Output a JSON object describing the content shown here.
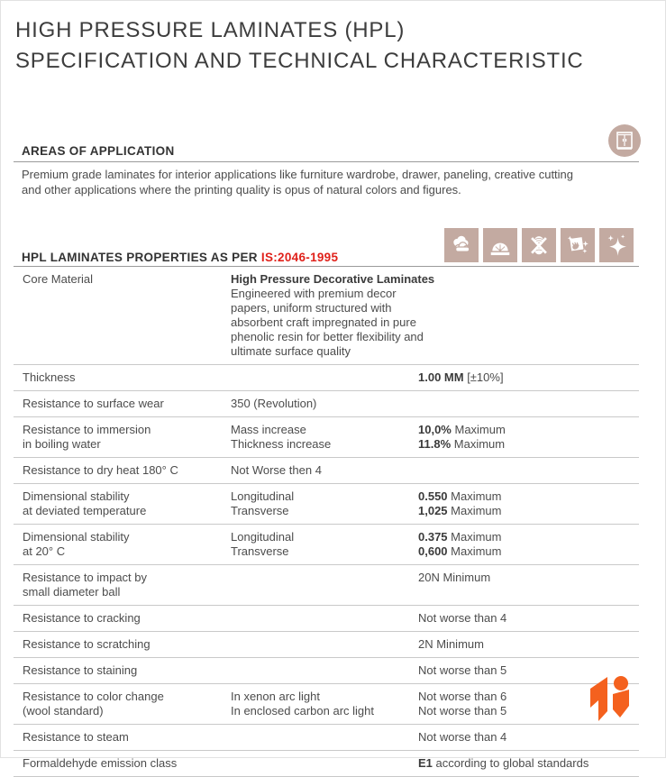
{
  "page": {
    "title_line1": "HIGH PRESSURE LAMINATES (HPL)",
    "title_line2": "SPECIFICATION AND TECHNICAL CHARACTERISTIC"
  },
  "areas": {
    "heading": "AREAS OF APPLICATION",
    "body": "Premium grade laminates for interior applications like furniture wardrobe, drawer, paneling, creative cutting and other applications where the printing quality is opus of natural colors and figures.",
    "icon": "wardrobe-icon"
  },
  "properties": {
    "heading_prefix": "HPL LAMINATES PROPERTIES AS PER ",
    "heading_standard": "IS:2046-1995",
    "icons": [
      "steam-clouds-icon",
      "abrasion-disc-icon",
      "no-scratch-icon",
      "easy-clean-icon",
      "shine-sparkle-icon"
    ]
  },
  "colors": {
    "accent_red": "#e0211a",
    "icon_taupe": "#c3aaa1",
    "logo_orange": "#f4611e",
    "text_dark": "#3d3d3d",
    "rule_gray": "#7f7f7f",
    "row_line": "#c9c9c9"
  },
  "table": {
    "rows": [
      {
        "property": [
          "Core Material"
        ],
        "wide_mid": true,
        "mid": [
          {
            "b": "High Pressure Decorative Laminates"
          },
          {
            "t": "Engineered with premium decor papers, uniform structured with absorbent craft impregnated in pure phenolic resin for better flexibility and ultimate surface quality"
          }
        ],
        "value": []
      },
      {
        "property": [
          "Thickness"
        ],
        "mid": [],
        "value": [
          {
            "b": "1.00 MM",
            "t": "  [±10%]"
          }
        ]
      },
      {
        "property": [
          "Resistance to surface wear"
        ],
        "mid": [
          "350 (Revolution)"
        ],
        "value": []
      },
      {
        "property": [
          "Resistance to immersion",
          "in boiling water"
        ],
        "mid": [
          "Mass increase",
          "Thickness increase"
        ],
        "value": [
          {
            "b": "10,0%",
            "t": " Maximum"
          },
          {
            "b": "11.8%",
            "t": " Maximum"
          }
        ]
      },
      {
        "property": [
          "Resistance to dry heat 180° C"
        ],
        "mid": [
          "Not Worse then 4"
        ],
        "value": []
      },
      {
        "property": [
          "Dimensional stability",
          "at deviated temperature"
        ],
        "mid": [
          "Longitudinal",
          "Transverse"
        ],
        "value": [
          {
            "b": "0.550",
            "t": " Maximum"
          },
          {
            "b": "1,025",
            "t": " Maximum"
          }
        ]
      },
      {
        "property": [
          "Dimensional stability",
          "at 20° C"
        ],
        "mid": [
          "Longitudinal",
          "Transverse"
        ],
        "value": [
          {
            "b": "0.375",
            "t": " Maximum"
          },
          {
            "b": "0,600",
            "t": " Maximum"
          }
        ]
      },
      {
        "property": [
          "Resistance to impact by",
          "small diameter ball"
        ],
        "mid": [],
        "value": [
          "20N Minimum"
        ]
      },
      {
        "property": [
          "Resistance to cracking"
        ],
        "mid": [],
        "value": [
          "Not worse than 4"
        ]
      },
      {
        "property": [
          "Resistance to scratching"
        ],
        "mid": [],
        "value": [
          "2N Minimum"
        ]
      },
      {
        "property": [
          "Resistance to staining"
        ],
        "mid": [],
        "value": [
          "Not worse than 5"
        ]
      },
      {
        "property": [
          "Resistance to color change",
          "(wool standard)"
        ],
        "mid": [
          "In xenon arc light",
          "In enclosed carbon arc light"
        ],
        "value": [
          "Not worse than 6",
          "Not worse than 5"
        ]
      },
      {
        "property": [
          "Resistance to steam"
        ],
        "mid": [],
        "value": [
          "Not worse than 4"
        ]
      },
      {
        "property": [
          "Formaldehyde emission class"
        ],
        "mid": [],
        "value": [
          {
            "b": "E1",
            "t": "  according to global standards"
          }
        ]
      }
    ]
  },
  "logo": {
    "name": "brand-k-logo"
  }
}
